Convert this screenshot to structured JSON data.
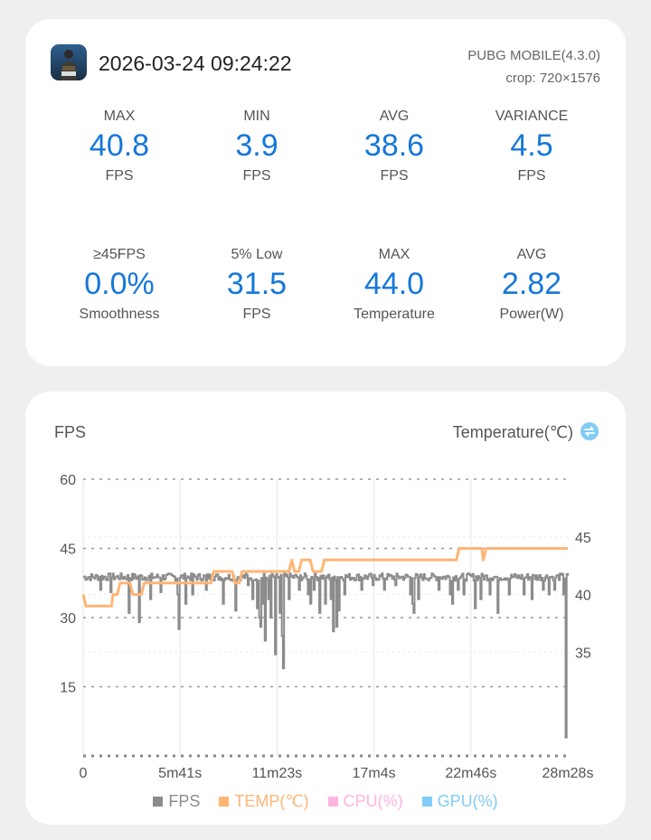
{
  "header": {
    "timestamp": "2026-03-24 09:24:22",
    "app_name": "PUBG MOBILE(4.3.0)",
    "crop": "crop: 720×1576",
    "app_icon": "pubg-app-icon"
  },
  "stats_row1": [
    {
      "label": "MAX",
      "value": "40.8",
      "unit": "FPS"
    },
    {
      "label": "MIN",
      "value": "3.9",
      "unit": "FPS"
    },
    {
      "label": "AVG",
      "value": "38.6",
      "unit": "FPS"
    },
    {
      "label": "VARIANCE",
      "value": "4.5",
      "unit": "FPS"
    }
  ],
  "stats_row2": [
    {
      "label": "≥45FPS",
      "value": "0.0%",
      "unit": "Smoothness"
    },
    {
      "label": "5% Low",
      "value": "31.5",
      "unit": "FPS"
    },
    {
      "label": "MAX",
      "value": "44.0",
      "unit": "Temperature"
    },
    {
      "label": "AVG",
      "value": "2.82",
      "unit": "Power(W)"
    }
  ],
  "chart": {
    "left_title": "FPS",
    "right_title": "Temperature(℃)",
    "swap_icon": "swap-icon"
  },
  "colors": {
    "accent": "#1677d9",
    "fps": "#8c8c8c",
    "temp": "#ffb574",
    "cpu": "#ffb3e0",
    "gpu": "#80ccf5"
  },
  "legend": [
    {
      "label": "FPS",
      "color": "#8c8c8c"
    },
    {
      "label": "TEMP(℃)",
      "color": "#ffb574"
    },
    {
      "label": "CPU(%)",
      "color": "#ffb3e0"
    },
    {
      "label": "GPU(%)",
      "color": "#80ccf5"
    }
  ],
  "chart_data": {
    "type": "line",
    "x_tick_labels": [
      "0",
      "5m41s",
      "11m23s",
      "17m4s",
      "22m46s",
      "28m28s"
    ],
    "duration_seconds": 1708,
    "y_left": {
      "label": "FPS",
      "ticks": [
        "60",
        "45",
        "30",
        "15"
      ],
      "ylim": [
        0,
        60
      ]
    },
    "y_right": {
      "label": "Temperature(℃)",
      "ticks": [
        "45",
        "40",
        "35"
      ],
      "ylim": [
        26,
        50
      ]
    },
    "grid": true,
    "legend_placement": "bottom",
    "series": [
      {
        "name": "FPS",
        "baseline": 39,
        "dips": [
          [
            60,
            36
          ],
          [
            95,
            35.5
          ],
          [
            160,
            31
          ],
          [
            195,
            29
          ],
          [
            235,
            34
          ],
          [
            270,
            35.5
          ],
          [
            330,
            35
          ],
          [
            335,
            27.5
          ],
          [
            360,
            33
          ],
          [
            385,
            35
          ],
          [
            430,
            36
          ],
          [
            490,
            33
          ],
          [
            535,
            31.5
          ],
          [
            580,
            37
          ],
          [
            595,
            34
          ],
          [
            610,
            32
          ],
          [
            620,
            30
          ],
          [
            625,
            28
          ],
          [
            630,
            33
          ],
          [
            640,
            25
          ],
          [
            650,
            34
          ],
          [
            660,
            30
          ],
          [
            675,
            22
          ],
          [
            690,
            31
          ],
          [
            700,
            26
          ],
          [
            705,
            19
          ],
          [
            725,
            34
          ],
          [
            760,
            36
          ],
          [
            790,
            35
          ],
          [
            800,
            33
          ],
          [
            810,
            36
          ],
          [
            830,
            31
          ],
          [
            850,
            33
          ],
          [
            870,
            34
          ],
          [
            880,
            27
          ],
          [
            890,
            28
          ],
          [
            900,
            31.5
          ],
          [
            920,
            35
          ],
          [
            980,
            36
          ],
          [
            1020,
            37
          ],
          [
            1060,
            36
          ],
          [
            1100,
            37
          ],
          [
            1150,
            35
          ],
          [
            1160,
            33
          ],
          [
            1165,
            31
          ],
          [
            1180,
            34
          ],
          [
            1250,
            36
          ],
          [
            1290,
            35
          ],
          [
            1300,
            33
          ],
          [
            1320,
            36
          ],
          [
            1340,
            35
          ],
          [
            1380,
            32
          ],
          [
            1400,
            34
          ],
          [
            1430,
            35
          ],
          [
            1460,
            31
          ],
          [
            1500,
            35
          ],
          [
            1550,
            35
          ],
          [
            1580,
            34
          ],
          [
            1620,
            36
          ],
          [
            1640,
            35
          ],
          [
            1660,
            36
          ],
          [
            1690,
            35
          ],
          [
            1698,
            31
          ],
          [
            1700,
            4
          ]
        ]
      },
      {
        "name": "TEMP(℃)",
        "points": [
          [
            0,
            40
          ],
          [
            10,
            39
          ],
          [
            100,
            39
          ],
          [
            105,
            40
          ],
          [
            120,
            40
          ],
          [
            130,
            41
          ],
          [
            165,
            41
          ],
          [
            175,
            40
          ],
          [
            205,
            40
          ],
          [
            215,
            41
          ],
          [
            450,
            41
          ],
          [
            460,
            42
          ],
          [
            525,
            42
          ],
          [
            535,
            41
          ],
          [
            550,
            41
          ],
          [
            560,
            42
          ],
          [
            725,
            42
          ],
          [
            735,
            43
          ],
          [
            745,
            42
          ],
          [
            760,
            42
          ],
          [
            770,
            43
          ],
          [
            800,
            43
          ],
          [
            810,
            42
          ],
          [
            840,
            42
          ],
          [
            850,
            43
          ],
          [
            1315,
            43
          ],
          [
            1325,
            44
          ],
          [
            1405,
            44
          ],
          [
            1410,
            43
          ],
          [
            1420,
            44
          ],
          [
            1708,
            44
          ]
        ]
      }
    ]
  }
}
